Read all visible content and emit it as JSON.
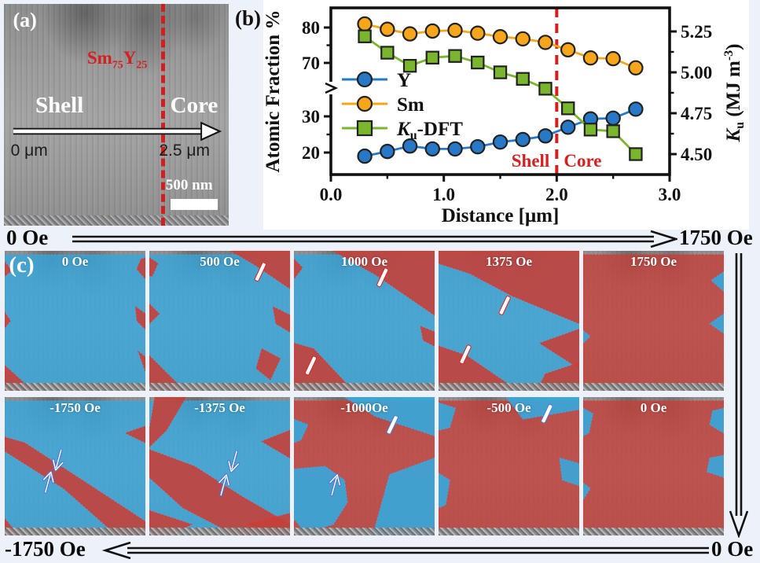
{
  "figure": {
    "colors": {
      "page_bg": "#edf1f9",
      "panel_b_bg": "#ffffff",
      "series_blue": "#2878c8",
      "series_orange": "#f7a51b",
      "series_green": "#79b52d",
      "marker_edge": "#222222",
      "divider_red": "#d41f1f",
      "annotation_red": "#d42020",
      "overlay_blue": "#35a8dd",
      "overlay_red": "#c4403a",
      "outline_blue": "#4f9fe0",
      "outline_red": "#ff2a1a",
      "marker_slash_red": "#e02020",
      "marker_arrow_blue": "#4f79d8",
      "arrow_black": "#111111"
    },
    "panel_a": {
      "label": "(a)",
      "formula": {
        "el1": "Sm",
        "sub1": "75",
        "el2": "Y",
        "sub2": "25"
      },
      "shell": "Shell",
      "core": "Core",
      "scale_start": "0 μm",
      "scale_end": "2.5 μm",
      "scalebar": "500 nm"
    },
    "panel_b": {
      "label": "(b)"
    },
    "panel_c": {
      "label": "(c)",
      "top_arrow": {
        "left": "0 Oe",
        "right": "1750 Oe"
      },
      "bottom_arrow": {
        "left": "-1750 Oe",
        "right": "0 Oe"
      },
      "cells": [
        {
          "row": 0,
          "col": 0,
          "label": "0 Oe",
          "base": "blue",
          "patches": [
            {
              "c": "red",
              "p": "0,8 5,14 0,18"
            },
            {
              "c": "red",
              "p": "97,6 100,5 100,20 94,13"
            },
            {
              "c": "red",
              "p": "0,44 4,50 0,55"
            },
            {
              "c": "red",
              "p": "93,40 100,45 100,56 94,50"
            },
            {
              "c": "red",
              "p": "95,72 100,76 100,86"
            },
            {
              "c": "red",
              "p": "0,82 20,100 0,100"
            }
          ],
          "markers": []
        },
        {
          "row": 0,
          "col": 1,
          "label": "500 Oe",
          "base": "blue",
          "patches": [
            {
              "c": "red",
              "p": "58,0 100,0 100,27 75,10"
            },
            {
              "c": "red",
              "p": "0,5 6,9 2,18 0,18"
            },
            {
              "c": "red",
              "p": "0,38 7,45 0,52"
            },
            {
              "c": "red",
              "p": "88,40 100,46 100,58 90,52"
            },
            {
              "c": "red",
              "p": "0,75 25,100 0,100"
            },
            {
              "c": "red",
              "p": "80,70 93,77 86,92 76,84"
            }
          ],
          "markers": [
            {
              "t": "slash",
              "c": "red",
              "x": 79,
              "y": 15,
              "rot": 25
            }
          ]
        },
        {
          "row": 0,
          "col": 2,
          "label": "1000 Oe",
          "base": "blue",
          "patches": [
            {
              "c": "red",
              "p": "28,0 100,0 100,46 58,17"
            },
            {
              "c": "red",
              "p": "0,6 6,12 0,20"
            },
            {
              "c": "red",
              "p": "90,54 100,58 100,68 92,64"
            },
            {
              "c": "red",
              "p": "0,66 14,70 42,100 0,100"
            }
          ],
          "markers": [
            {
              "t": "slash",
              "c": "red",
              "x": 63,
              "y": 19,
              "rot": 25
            },
            {
              "t": "slash",
              "c": "red",
              "x": 12,
              "y": 82,
              "rot": 25
            }
          ]
        },
        {
          "row": 0,
          "col": 3,
          "label": "1375 Oe",
          "base": "blue",
          "patches": [
            {
              "c": "red",
              "p": "0,0 100,0 100,52 52,32 22,16 0,9"
            },
            {
              "c": "red",
              "p": "0,68 20,75 52,97 42,100 0,100"
            },
            {
              "c": "red",
              "p": "100,56 72,66 100,84"
            },
            {
              "c": "red",
              "p": "76,88 100,80 100,100 70,100"
            }
          ],
          "markers": [
            {
              "t": "slash",
              "c": "red",
              "x": 47,
              "y": 39,
              "rot": 25
            },
            {
              "t": "slash",
              "c": "red",
              "x": 19,
              "y": 74,
              "rot": 25
            }
          ]
        },
        {
          "row": 0,
          "col": 4,
          "label": "1750 Oe",
          "base": "red",
          "patches": [
            {
              "c": "blue",
              "p": "100,15 91,21 100,29"
            },
            {
              "c": "blue",
              "p": "100,45 90,52 100,59"
            },
            {
              "c": "blue",
              "p": "0,57 5,61 0,66"
            }
          ],
          "markers": []
        },
        {
          "row": 1,
          "col": 0,
          "label": "-1750 Oe",
          "base": "blue",
          "patches": [
            {
              "c": "red",
              "p": "0,29 14,33 58,62 100,90 100,100 80,100 42,66 0,39"
            },
            {
              "c": "red",
              "p": "100,21 100,33 86,26"
            },
            {
              "c": "red",
              "p": "0,88 10,100 0,100"
            }
          ],
          "markers": [
            {
              "t": "arrow",
              "c": "blue",
              "x": 38,
              "y": 46,
              "rot": 15
            },
            {
              "t": "arrow",
              "c": "blue",
              "x": 31,
              "y": 61,
              "rot": 195
            }
          ]
        },
        {
          "row": 1,
          "col": 1,
          "label": "-1375 Oe",
          "base": "blue",
          "patches": [
            {
              "c": "red",
              "p": "4,0 26,0 12,24 0,36 0,24"
            },
            {
              "c": "red",
              "p": "0,38 32,50 66,72 100,92 100,100 62,100 24,80 0,58"
            },
            {
              "c": "red",
              "p": "0,82 30,92 14,100 0,100"
            },
            {
              "c": "red",
              "p": "100,24 100,44 80,32"
            },
            {
              "c": "red",
              "p": "70,92 100,84 100,100"
            }
          ],
          "markers": [
            {
              "t": "arrow",
              "c": "blue",
              "x": 60,
              "y": 47,
              "rot": 15
            },
            {
              "t": "arrow",
              "c": "blue",
              "x": 53,
              "y": 63,
              "rot": 195
            }
          ]
        },
        {
          "row": 1,
          "col": 2,
          "label": "-1000Oe",
          "base": "red",
          "patches": [
            {
              "c": "blue",
              "p": "36,0 100,0 100,28 58,14"
            },
            {
              "c": "blue",
              "p": "0,16 10,20 5,31 0,33"
            },
            {
              "c": "blue",
              "p": "100,44 68,56 56,100 100,100"
            },
            {
              "c": "blue",
              "p": "0,52 22,50 36,60 38,76 28,92 8,98 0,88"
            }
          ],
          "markers": [
            {
              "t": "slash",
              "c": "blue",
              "x": 70,
              "y": 20,
              "rot": 25
            },
            {
              "t": "arrow",
              "c": "blue",
              "x": 29,
              "y": 63,
              "rot": 195
            }
          ]
        },
        {
          "row": 1,
          "col": 3,
          "label": "-500 Oe",
          "base": "red",
          "patches": [
            {
              "c": "blue",
              "p": "48,0 100,0 100,9 60,16"
            },
            {
              "c": "blue",
              "p": "0,4 12,8 8,22 0,24"
            },
            {
              "c": "blue",
              "p": "0,55 8,60 5,78 0,80"
            },
            {
              "c": "blue",
              "p": "86,44 100,48 100,64 88,60"
            }
          ],
          "markers": [
            {
              "t": "slash",
              "c": "blue",
              "x": 77,
              "y": 12,
              "rot": 25
            }
          ]
        },
        {
          "row": 1,
          "col": 4,
          "label": "0 Oe",
          "base": "red",
          "patches": [
            {
              "c": "blue",
              "p": "0,8 7,12 4,26 0,28"
            },
            {
              "c": "blue",
              "p": "0,62 5,66 0,74"
            },
            {
              "c": "blue",
              "p": "92,10 100,8 100,26 90,20"
            },
            {
              "c": "blue",
              "p": "90,44 100,42 100,58 88,54"
            }
          ],
          "markers": []
        }
      ]
    }
  },
  "chart_data": {
    "type": "line",
    "title": "",
    "xlabel": "Distance [μm]",
    "ylabel_left": "Atomic Fraction %",
    "ylabel_right": "Ku (MJ m⁻³)",
    "ylabel_right_parts": {
      "k": "K",
      "sub": "u",
      "mid": " (MJ m",
      "sup": "-3",
      "end": ")"
    },
    "xlim": [
      0.0,
      3.0
    ],
    "x_tick_values": [
      0.0,
      1.0,
      2.0,
      3.0
    ],
    "x_tick_labels": [
      "0.0",
      "1.0",
      "2.0",
      "3.0"
    ],
    "x_minor_ticks": [
      0.5,
      1.5,
      2.5
    ],
    "left_axis_break": true,
    "left_tick_values": [
      80,
      70,
      30,
      20
    ],
    "left_minor_ticks": [
      75,
      25
    ],
    "right_tick_labels": [
      "5.25",
      "5.00",
      "4.75",
      "4.50"
    ],
    "right_tick_values": [
      5.25,
      5.0,
      4.75,
      4.5
    ],
    "right_minor_ticks": [
      5.125,
      4.875,
      4.625
    ],
    "legend_position": "inside-left",
    "grid": false,
    "x": [
      0.3,
      0.5,
      0.7,
      0.9,
      1.1,
      1.3,
      1.5,
      1.7,
      1.9,
      2.1,
      2.3,
      2.5,
      2.7
    ],
    "series": [
      {
        "name": "Y",
        "axis": "left",
        "marker": "circle",
        "color": "#2878c8",
        "values": [
          19,
          20.3,
          21.8,
          21,
          21,
          21.6,
          22.9,
          23.6,
          24.6,
          27,
          29.3,
          29.5,
          32
        ]
      },
      {
        "name": "Sm",
        "axis": "left",
        "marker": "circle",
        "color": "#f7a51b",
        "values": [
          81,
          79.5,
          78.2,
          79,
          79.2,
          78.4,
          77.4,
          76.8,
          75.8,
          73.7,
          71.4,
          71.2,
          68.6
        ]
      },
      {
        "name": "Ku-DFT",
        "axis": "right",
        "marker": "square",
        "color": "#79b52d",
        "values": [
          5.22,
          5.12,
          5.04,
          5.09,
          5.1,
          5.06,
          5.0,
          4.96,
          4.9,
          4.78,
          4.65,
          4.64,
          4.5
        ]
      }
    ],
    "annotations": {
      "divider_x": 2.0,
      "shell": "Shell",
      "core": "Core"
    }
  }
}
